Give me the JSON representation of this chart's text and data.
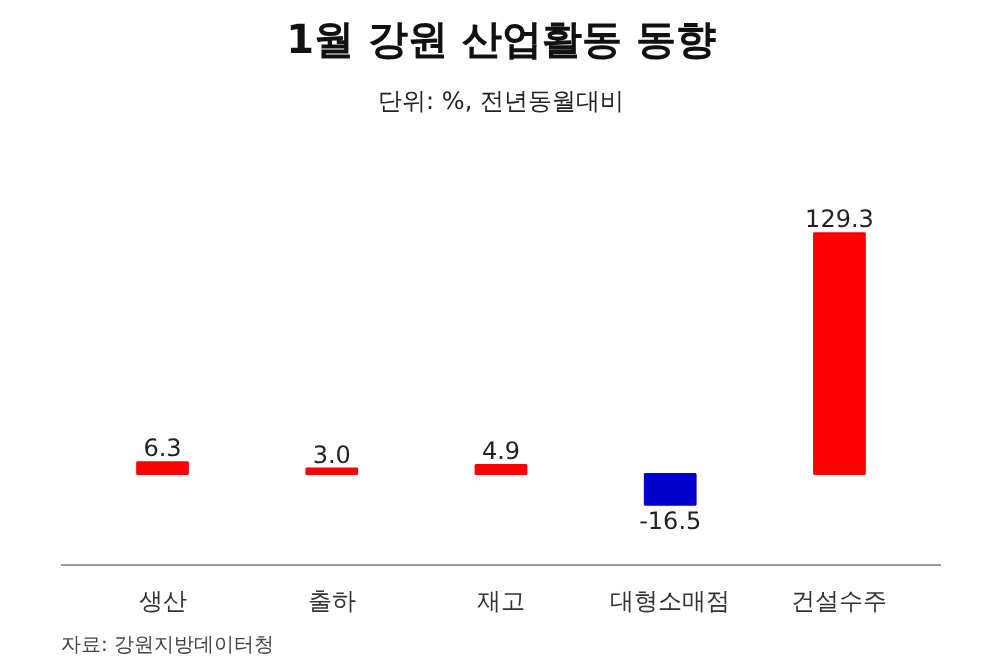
{
  "chart_data": {
    "type": "bar",
    "title": "1월 강원 산업활동 동향",
    "subtitle": "단위: %, 전년동월대비",
    "categories": [
      "생산",
      "출하",
      "재고",
      "대형소매점",
      "건설수주"
    ],
    "values": [
      6.3,
      3.0,
      4.9,
      -16.5,
      129.3
    ],
    "colors": [
      "#ff0000",
      "#ff0000",
      "#ff0000",
      "#0000cc",
      "#ff0000"
    ],
    "value_labels": [
      "6.3",
      "3.0",
      "4.9",
      "-16.5",
      "129.3"
    ],
    "grid": false,
    "annotations": [
      "자료: 강원지방데이터청"
    ]
  }
}
